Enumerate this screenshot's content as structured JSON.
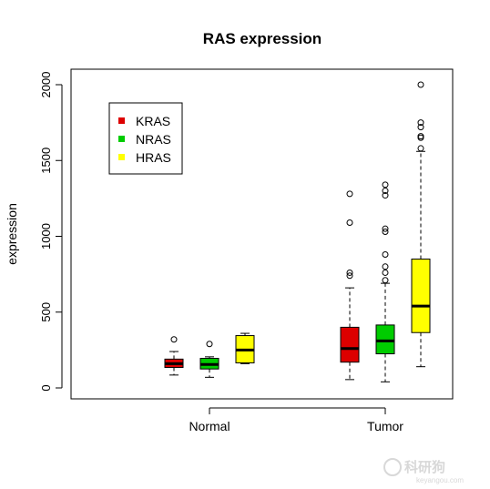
{
  "chart_data": {
    "type": "boxplot",
    "title": "RAS expression",
    "xlabel": "",
    "ylabel": "expression",
    "ylim": [
      -80,
      2080
    ],
    "yticks": [
      0,
      500,
      1000,
      1500,
      2000
    ],
    "categories": [
      "Normal",
      "Tumor"
    ],
    "legend_position": "top-left",
    "series": [
      {
        "name": "KRAS",
        "color": "#dd0000",
        "boxes": [
          {
            "category": "Normal",
            "whisker_low": 85,
            "q1": 135,
            "median": 160,
            "q3": 190,
            "whisker_high": 240,
            "outliers": [
              320
            ]
          },
          {
            "category": "Tumor",
            "whisker_low": 55,
            "q1": 170,
            "median": 260,
            "q3": 400,
            "whisker_high": 660,
            "outliers": [
              740,
              760,
              1090,
              1280
            ]
          }
        ]
      },
      {
        "name": "NRAS",
        "color": "#00cc00",
        "boxes": [
          {
            "category": "Normal",
            "whisker_low": 70,
            "q1": 125,
            "median": 155,
            "q3": 195,
            "whisker_high": 205,
            "outliers": [
              290
            ]
          },
          {
            "category": "Tumor",
            "whisker_low": 40,
            "q1": 225,
            "median": 310,
            "q3": 415,
            "whisker_high": 690,
            "outliers": [
              710,
              760,
              800,
              880,
              1030,
              1050,
              1270,
              1300,
              1340
            ]
          }
        ]
      },
      {
        "name": "HRAS",
        "color": "#ffff00",
        "boxes": [
          {
            "category": "Normal",
            "whisker_low": 160,
            "q1": 165,
            "median": 250,
            "q3": 345,
            "whisker_high": 360,
            "outliers": []
          },
          {
            "category": "Tumor",
            "whisker_low": 140,
            "q1": 365,
            "median": 540,
            "q3": 850,
            "whisker_high": 1560,
            "outliers": [
              1580,
              1650,
              1660,
              1720,
              1750,
              2000
            ]
          }
        ]
      }
    ]
  },
  "watermark": {
    "text": "科研狗",
    "sub": "keyangou.com"
  }
}
